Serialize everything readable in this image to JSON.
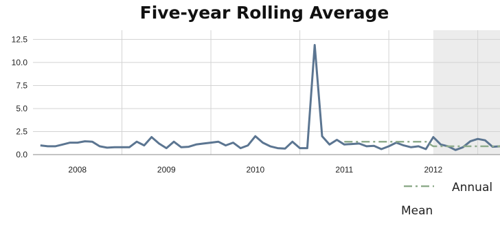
{
  "chart_data": {
    "type": "line",
    "title": "Five-year Rolling Average",
    "xlabel": "",
    "ylabel": "",
    "x_ticks": [
      "2008",
      "2009",
      "2010",
      "2011",
      "2012"
    ],
    "y_ticks": [
      "0.0",
      "2.5",
      "5.0",
      "7.5",
      "10.0",
      "12.5"
    ],
    "ylim": [
      0,
      13.5
    ],
    "xlim": [
      "2007-07",
      "2012-10"
    ],
    "grid": true,
    "highlight_range": [
      "2012-01",
      "2012-10"
    ],
    "legend": {
      "placement": "bottom-right",
      "entries": [
        "Annual Mean"
      ]
    },
    "series": [
      {
        "x": [
          "2007-08",
          "2007-09",
          "2007-10",
          "2007-11",
          "2007-12",
          "2008-01",
          "2008-02",
          "2008-03",
          "2008-04",
          "2008-05",
          "2008-06",
          "2008-07",
          "2008-08",
          "2008-09",
          "2008-10",
          "2008-11",
          "2008-12",
          "2009-01",
          "2009-02",
          "2009-03",
          "2009-04",
          "2009-05",
          "2009-06",
          "2009-07",
          "2009-08",
          "2009-09",
          "2009-10",
          "2009-11",
          "2009-12",
          "2010-01",
          "2010-02",
          "2010-03",
          "2010-04",
          "2010-05",
          "2010-06",
          "2010-07",
          "2010-08",
          "2010-09",
          "2010-10",
          "2010-11",
          "2010-12",
          "2011-01",
          "2011-02",
          "2011-03",
          "2011-04",
          "2011-05",
          "2011-06",
          "2011-07",
          "2011-08",
          "2011-09",
          "2011-10",
          "2011-11",
          "2011-12",
          "2012-01",
          "2012-02",
          "2012-03",
          "2012-04",
          "2012-05",
          "2012-06",
          "2012-07",
          "2012-08",
          "2012-09",
          "2012-10"
        ],
        "values": [
          1.0,
          0.9,
          0.9,
          1.1,
          1.3,
          1.3,
          1.45,
          1.4,
          0.9,
          0.75,
          0.8,
          0.8,
          0.8,
          1.4,
          1.0,
          1.9,
          1.2,
          0.7,
          1.4,
          0.8,
          0.85,
          1.1,
          1.2,
          1.3,
          1.4,
          1.0,
          1.3,
          0.7,
          1.0,
          2.0,
          1.3,
          0.9,
          0.7,
          0.65,
          1.4,
          0.7,
          0.7,
          11.9,
          2.0,
          1.1,
          1.6,
          1.1,
          1.15,
          1.2,
          0.9,
          0.95,
          0.6,
          0.9,
          1.3,
          1.0,
          0.8,
          0.9,
          0.6,
          1.9,
          1.1,
          0.9,
          0.5,
          0.8,
          1.45,
          1.7,
          1.55,
          0.85,
          0.9
        ],
        "color": "#5b7591"
      },
      {
        "name": "Annual Mean",
        "x": [
          "2011-01",
          "2011-12",
          "2012-01",
          "2012-10"
        ],
        "values": [
          1.4,
          1.4,
          0.9,
          0.9
        ],
        "color": "#8fac8c",
        "style": "dash-dot"
      }
    ]
  }
}
